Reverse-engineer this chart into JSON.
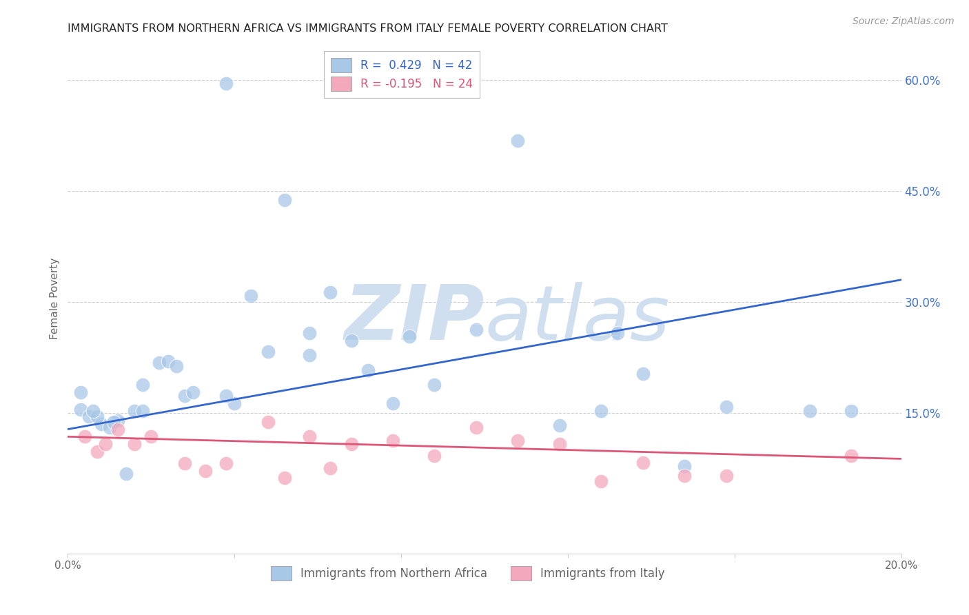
{
  "title": "IMMIGRANTS FROM NORTHERN AFRICA VS IMMIGRANTS FROM ITALY FEMALE POVERTY CORRELATION CHART",
  "source": "Source: ZipAtlas.com",
  "xlabel_blue": "Immigrants from Northern Africa",
  "xlabel_pink": "Immigrants from Italy",
  "ylabel": "Female Poverty",
  "xlim": [
    0.0,
    0.2
  ],
  "ylim": [
    -0.04,
    0.65
  ],
  "yticks": [
    0.15,
    0.3,
    0.45,
    0.6
  ],
  "ytick_labels": [
    "15.0%",
    "30.0%",
    "45.0%",
    "60.0%"
  ],
  "xticks": [
    0.0,
    0.04,
    0.08,
    0.12,
    0.16,
    0.2
  ],
  "xtick_labels": [
    "0.0%",
    "",
    "",
    "",
    "",
    "20.0%"
  ],
  "legend_blue_r": "R =  0.429",
  "legend_blue_n": "N = 42",
  "legend_pink_r": "R = -0.195",
  "legend_pink_n": "N = 24",
  "blue_color": "#a8c8e8",
  "pink_color": "#f4a8bc",
  "blue_line_color": "#3366cc",
  "pink_line_color": "#dd5577",
  "watermark_zip": "ZIP",
  "watermark_atlas": "atlas",
  "watermark_color": "#d0dff0",
  "blue_x": [
    0.038,
    0.003,
    0.005,
    0.008,
    0.01,
    0.012,
    0.007,
    0.011,
    0.016,
    0.022,
    0.024,
    0.026,
    0.018,
    0.058,
    0.063,
    0.068,
    0.072,
    0.078,
    0.082,
    0.048,
    0.052,
    0.044,
    0.028,
    0.03,
    0.04,
    0.098,
    0.088,
    0.118,
    0.108,
    0.128,
    0.132,
    0.138,
    0.148,
    0.178,
    0.188,
    0.003,
    0.006,
    0.014,
    0.038,
    0.058,
    0.158,
    0.018
  ],
  "blue_y": [
    0.595,
    0.155,
    0.145,
    0.135,
    0.13,
    0.14,
    0.145,
    0.138,
    0.153,
    0.218,
    0.22,
    0.213,
    0.153,
    0.258,
    0.313,
    0.248,
    0.208,
    0.163,
    0.253,
    0.233,
    0.438,
    0.308,
    0.173,
    0.178,
    0.163,
    0.263,
    0.188,
    0.133,
    0.518,
    0.153,
    0.258,
    0.203,
    0.078,
    0.153,
    0.153,
    0.178,
    0.153,
    0.068,
    0.173,
    0.228,
    0.158,
    0.188
  ],
  "pink_x": [
    0.004,
    0.007,
    0.009,
    0.012,
    0.016,
    0.02,
    0.028,
    0.033,
    0.038,
    0.048,
    0.052,
    0.058,
    0.063,
    0.068,
    0.078,
    0.088,
    0.098,
    0.108,
    0.118,
    0.128,
    0.138,
    0.148,
    0.158,
    0.188
  ],
  "pink_y": [
    0.118,
    0.098,
    0.108,
    0.128,
    0.108,
    0.118,
    0.082,
    0.072,
    0.082,
    0.138,
    0.062,
    0.118,
    0.075,
    0.108,
    0.113,
    0.092,
    0.13,
    0.113,
    0.108,
    0.058,
    0.083,
    0.065,
    0.065,
    0.092
  ],
  "blue_trend_x": [
    0.0,
    0.2
  ],
  "blue_trend_y": [
    0.128,
    0.33
  ],
  "pink_trend_x": [
    0.0,
    0.2
  ],
  "pink_trend_y": [
    0.118,
    0.088
  ],
  "background_color": "#ffffff",
  "grid_color": "#d0d0d0",
  "title_color": "#222222",
  "axis_label_color": "#666666",
  "tick_label_color_right": "#4472c4",
  "tick_label_color_bottom": "#666666"
}
